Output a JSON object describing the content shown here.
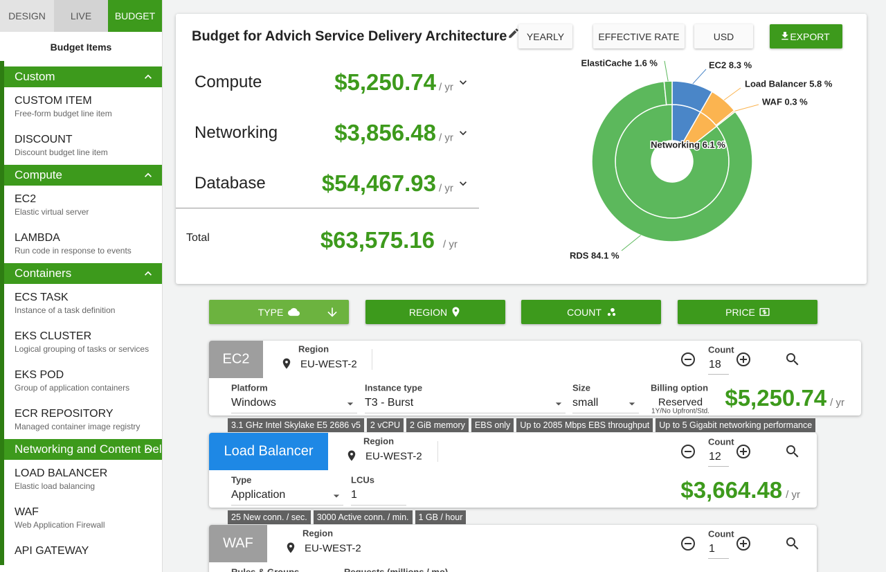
{
  "tabs": [
    "DESIGN",
    "LIVE",
    "BUDGET"
  ],
  "sidebar": {
    "title": "Budget Items",
    "groups": [
      {
        "name": "Custom",
        "items": [
          {
            "name": "CUSTOM ITEM",
            "description": "Free-form budget line item"
          },
          {
            "name": "DISCOUNT",
            "description": "Discount budget line item"
          }
        ]
      },
      {
        "name": "Compute",
        "items": [
          {
            "name": "EC2",
            "description": "Elastic virtual server"
          },
          {
            "name": "LAMBDA",
            "description": "Run code in response to events"
          }
        ]
      },
      {
        "name": "Containers",
        "items": [
          {
            "name": "ECS TASK",
            "description": "Instance of a task definition"
          },
          {
            "name": "EKS CLUSTER",
            "description": "Logical grouping of tasks or services"
          },
          {
            "name": "EKS POD",
            "description": "Group of application containers"
          },
          {
            "name": "ECR REPOSITORY",
            "description": "Managed container image registry"
          }
        ]
      },
      {
        "name": "Networking and Content Delivery",
        "items": [
          {
            "name": "LOAD BALANCER",
            "description": "Elastic load balancing"
          },
          {
            "name": "WAF",
            "description": "Web Application Firewall"
          },
          {
            "name": "API GATEWAY"
          }
        ]
      }
    ]
  },
  "budget": {
    "title": "Budget for Advich Service Delivery Architecture",
    "buttons": [
      "YEARLY",
      "EFFECTIVE RATE",
      "USD",
      "EXPORT"
    ],
    "rows": [
      {
        "label": "Compute",
        "amount": "$5,250.74",
        "unit": "/ yr"
      },
      {
        "label": "Networking",
        "amount": "$3,856.48",
        "unit": "/ yr"
      },
      {
        "label": "Database",
        "amount": "$54,467.93",
        "unit": "/ yr"
      }
    ],
    "total": {
      "label": "Total",
      "amount": "$63,575.16",
      "unit": "/ yr"
    },
    "chart": {
      "type": "sunburst",
      "inner": {
        "labels": [
          null,
          "Networking 6.1 %",
          null
        ],
        "values": [
          8.3,
          6.1,
          85.6
        ],
        "colors": [
          "#4a86c8",
          "#fbb450",
          "#5cb85c"
        ]
      },
      "outer": {
        "labels": [
          "EC2 8.3 %",
          "Load Balancer 5.8 %",
          "WAF 0.3 %",
          "RDS 84.1 %",
          "ElastiCache 1.6 %"
        ],
        "values": [
          8.3,
          5.8,
          0.3,
          84.1,
          1.6
        ],
        "colors": [
          "#4a86c8",
          "#fbb450",
          "#fbb450",
          "#5cb85c",
          "#5cb85c"
        ]
      }
    }
  },
  "filters": [
    "TYPE",
    "REGION",
    "COUNT",
    "PRICE"
  ],
  "resources": [
    {
      "type": "EC2",
      "region_label": "Region",
      "region": "EU-WEST-2",
      "count_label": "Count",
      "count": 18,
      "fields": [
        {
          "label": "Platform",
          "value": "Windows"
        },
        {
          "label": "Instance type",
          "value": "T3 - Burst"
        },
        {
          "label": "Size",
          "value": "small"
        }
      ],
      "billing": {
        "label": "Billing option",
        "value": "Reserved",
        "note": "1Y/No Upfront/Std."
      },
      "price": "$5,250.74",
      "unit": "/ yr",
      "tags": [
        "3.1 GHz Intel Skylake E5 2686 v5",
        "2 vCPU",
        "2 GiB memory",
        "EBS only",
        "Up to 2085 Mbps EBS throughput",
        "Up to 5 Gigabit networking performance"
      ]
    },
    {
      "type": "Load Balancer",
      "region_label": "Region",
      "region": "EU-WEST-2",
      "count_label": "Count",
      "count": 12,
      "fields": [
        {
          "label": "Type",
          "value": "Application"
        },
        {
          "label": "LCUs",
          "value": 1
        }
      ],
      "price": "$3,664.48",
      "unit": "/ yr",
      "tags": [
        "25 New conn. / sec.",
        "3000 Active conn. / min.",
        "1 GB / hour"
      ]
    },
    {
      "type": "WAF",
      "region_label": "Region",
      "region": "EU-WEST-2",
      "count_label": "Count",
      "count": 1,
      "fields": [
        {
          "label": "Rules & Groups"
        },
        {
          "label": "Requests (millions / mo)"
        }
      ]
    }
  ]
}
